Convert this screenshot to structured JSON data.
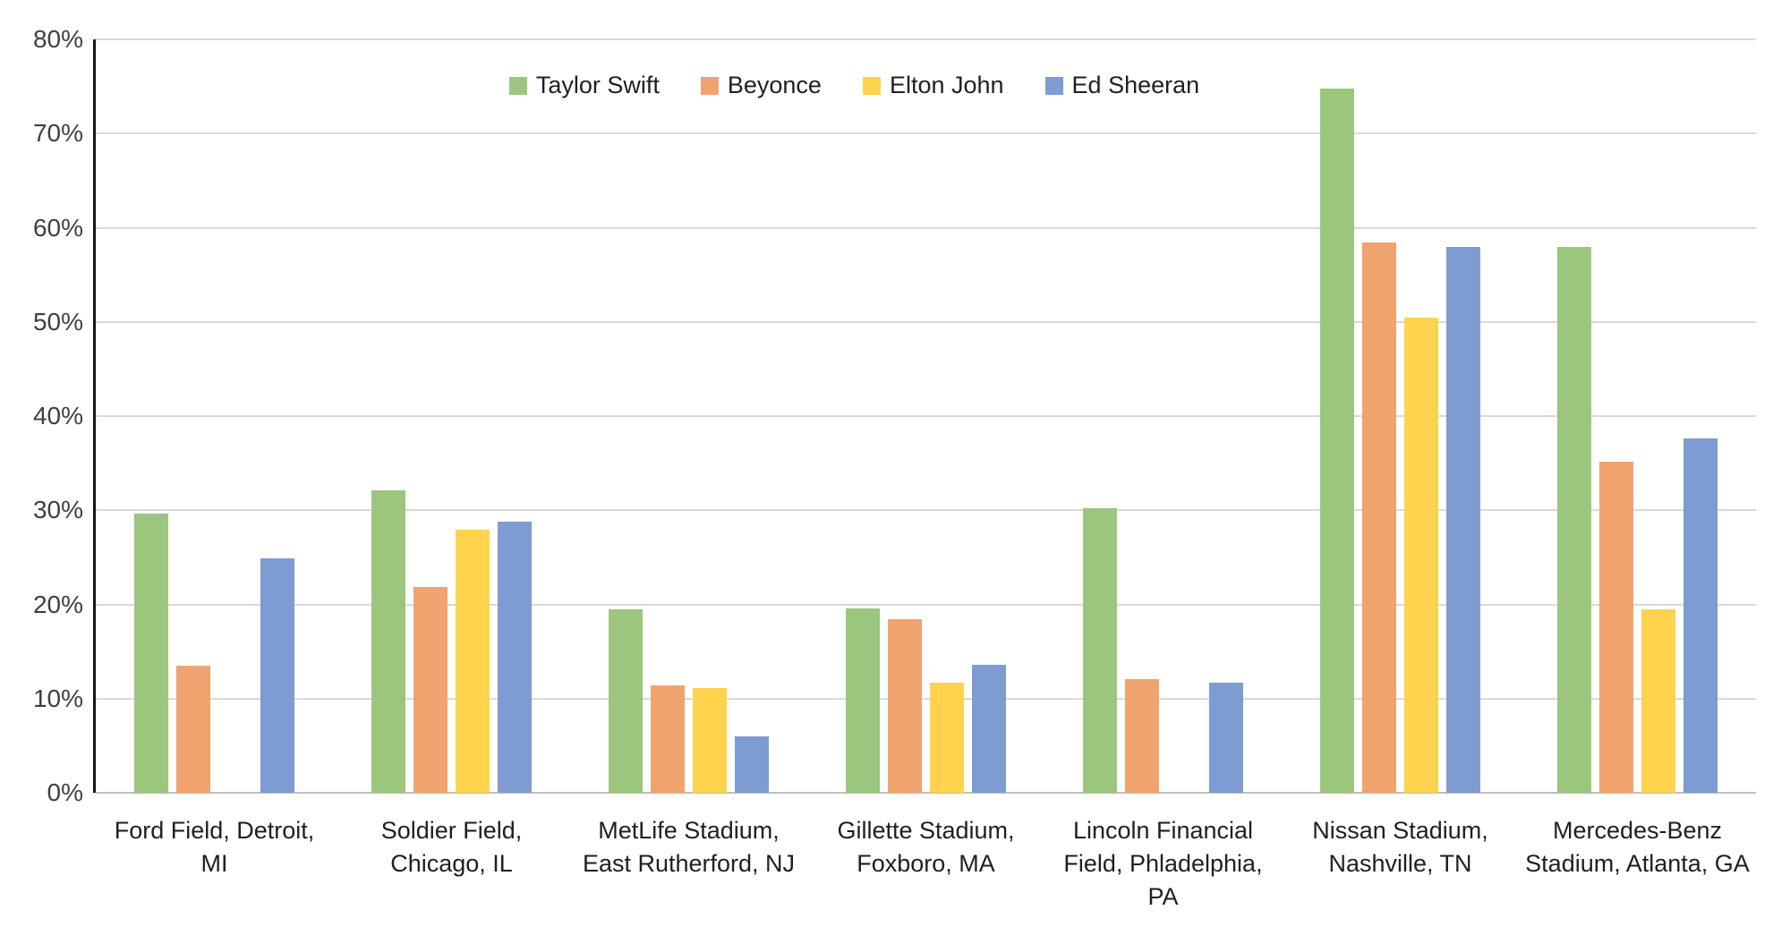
{
  "chart_data": {
    "type": "bar",
    "title": "",
    "xlabel": "",
    "ylabel": "",
    "ylim": [
      0,
      80
    ],
    "ytick_step": 10,
    "ytick_labels": [
      "0%",
      "10%",
      "20%",
      "30%",
      "40%",
      "50%",
      "60%",
      "70%",
      "80%"
    ],
    "grid": true,
    "legend_position": "top-center",
    "categories": [
      "Ford Field, Detroit, MI",
      "Soldier Field, Chicago, IL",
      "MetLife Stadium, East Rutherford, NJ",
      "Gillette Stadium, Foxboro, MA",
      "Lincoln Financial Field, Phladelphia, PA",
      "Nissan Stadium, Nashville, TN",
      "Mercedes-Benz Stadium, Atlanta, GA"
    ],
    "series": [
      {
        "name": "Taylor Swift",
        "color": "#9CC57E",
        "values": [
          29.6,
          32.1,
          19.5,
          19.6,
          30.2,
          74.8,
          58.0
        ]
      },
      {
        "name": "Beyonce",
        "color": "#F0A36E",
        "values": [
          13.5,
          21.9,
          11.4,
          18.4,
          12.1,
          58.4,
          35.2
        ]
      },
      {
        "name": "Elton John",
        "color": "#FFD34D",
        "values": [
          0,
          27.9,
          11.1,
          11.7,
          0,
          50.5,
          19.5
        ]
      },
      {
        "name": "Ed Sheeran",
        "color": "#7E9BD2",
        "values": [
          24.9,
          28.8,
          6.0,
          13.6,
          11.7,
          58.0,
          37.6
        ]
      }
    ],
    "axis_colors": {
      "gridline": "#d9d9d9",
      "baseline": "#bfbfbf",
      "y_axis_line": "#161616",
      "tick_text": "#3f3f3f",
      "label_text": "#1f1f1f"
    }
  }
}
